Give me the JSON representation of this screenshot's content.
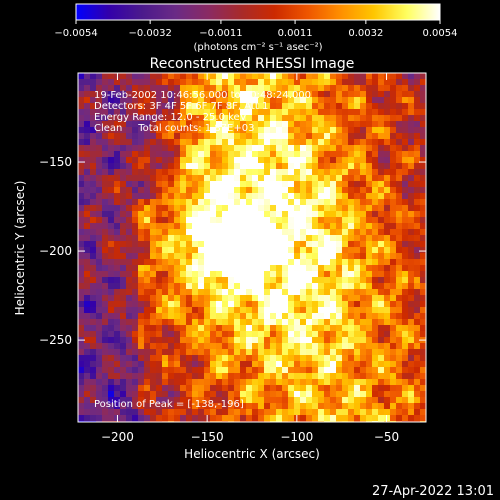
{
  "chart_data": {
    "type": "heatmap",
    "title": "Reconstructed RHESSI Image",
    "xlabel": "Heliocentric X (arcsec)",
    "ylabel": "Heliocentric Y (arcsec)",
    "xlim": [
      -222,
      -28
    ],
    "ylim": [
      -296,
      -100
    ],
    "x_ticks": [
      {
        "value": -200,
        "label": "−200"
      },
      {
        "value": -150,
        "label": "−150"
      },
      {
        "value": -100,
        "label": "−100"
      },
      {
        "value": -50,
        "label": "−50"
      }
    ],
    "y_ticks": [
      {
        "value": -150,
        "label": "−150"
      },
      {
        "value": -200,
        "label": "−200"
      },
      {
        "value": -250,
        "label": "−250"
      }
    ],
    "colorbar": {
      "range": [
        -0.0054,
        0.0054
      ],
      "ticks": [
        {
          "value": -0.0054,
          "label": "−0.0054"
        },
        {
          "value": -0.0032,
          "label": "−0.0032"
        },
        {
          "value": -0.0011,
          "label": "−0.0011"
        },
        {
          "value": 0.0011,
          "label": "0.0011"
        },
        {
          "value": 0.0032,
          "label": "0.0032"
        },
        {
          "value": 0.0054,
          "label": "0.0054"
        }
      ],
      "unit_label": "(photons cm⁻² s⁻¹ asec⁻²)",
      "colormap": [
        "#0000ff",
        "#3300aa",
        "#4b1a8c",
        "#6a2a86",
        "#8a2a63",
        "#a82a2a",
        "#cc2a00",
        "#ee5500",
        "#ff8f00",
        "#ffc600",
        "#ffff60",
        "#ffffff"
      ]
    },
    "annotations": [
      "19-Feb-2002 10:46:56.000 to 10:48:24.000",
      "Detectors: 3F 4F 5F 6F 7F 8F, Att 1",
      "Energy Range: 12.0 - 25.0 keV",
      "Clean     Total counts: 1.87E+03"
    ],
    "peak_label": "Position of Peak = [-138,-196]",
    "peak": {
      "x": -138,
      "y": -196,
      "value": 0.0054
    },
    "grid": false
  },
  "footer": {
    "timestamp": "27-Apr-2022 13:01"
  }
}
